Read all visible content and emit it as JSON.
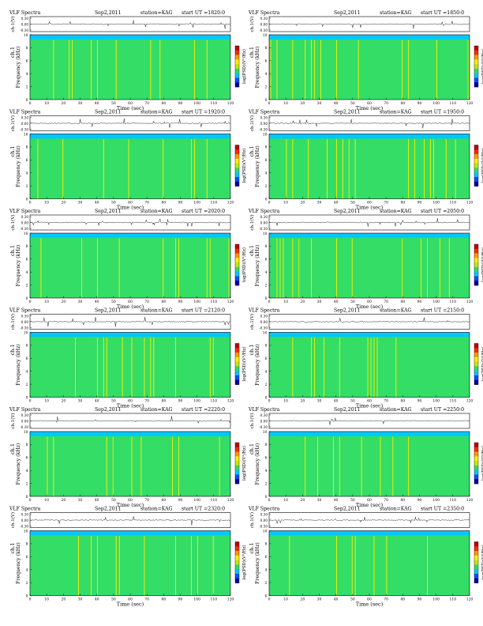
{
  "page": {
    "title_prefix": "VLF Spectra",
    "date": "Sep2,2011",
    "station": "station=KAG",
    "ut_prefix": "start  UT  ="
  },
  "chart_data": [
    {
      "type": "heatmap",
      "panel": 1,
      "start_ut": "1820:0"
    },
    {
      "type": "heatmap",
      "panel": 2,
      "start_ut": "1850:0"
    },
    {
      "type": "heatmap",
      "panel": 3,
      "start_ut": "1920:0"
    },
    {
      "type": "heatmap",
      "panel": 4,
      "start_ut": "1950:0"
    },
    {
      "type": "heatmap",
      "panel": 5,
      "start_ut": "2020:0"
    },
    {
      "type": "heatmap",
      "panel": 6,
      "start_ut": "2050:0"
    },
    {
      "type": "heatmap",
      "panel": 7,
      "start_ut": "2120:0"
    },
    {
      "type": "heatmap",
      "panel": 8,
      "start_ut": "2150:0"
    },
    {
      "type": "heatmap",
      "panel": 9,
      "start_ut": "2220:0"
    },
    {
      "type": "heatmap",
      "panel": 10,
      "start_ut": "2250:0"
    },
    {
      "type": "heatmap",
      "panel": 11,
      "start_ut": "2320:0"
    },
    {
      "type": "heatmap",
      "panel": 12,
      "start_ut": "2350:0"
    }
  ],
  "axes": {
    "xlabel": "Time  (sec)",
    "xticks": [
      0,
      10,
      20,
      30,
      40,
      50,
      60,
      70,
      80,
      90,
      100,
      110,
      120
    ],
    "xlim": [
      0,
      120
    ],
    "ylabel_top": "ch.1",
    "ylabel_freq": "Frequency  (kHz)",
    "yticks_freq": [
      0,
      2,
      4,
      6,
      8,
      10
    ],
    "ylim_freq": [
      0,
      10
    ],
    "ylabel_wave": "ch.1(V)",
    "yticks_wave": [
      "0.30",
      "0.00",
      "-0.30"
    ],
    "colorbar_label": "log(PSD)(V²/Hz)"
  },
  "colors": {
    "scale": [
      "#0000a0",
      "#0050ff",
      "#00c8ff",
      "#33dd66",
      "#c8e600",
      "#ffee00",
      "#ff9900",
      "#ff2a00",
      "#c00000"
    ]
  }
}
